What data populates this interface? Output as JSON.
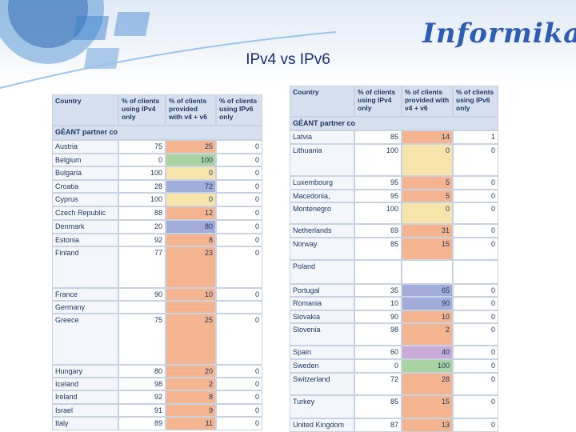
{
  "title": "IPv4 vs IPv6",
  "logo": "Informika",
  "tables": [
    {
      "columns": [
        "Country",
        "% of clients using IPv4 only",
        "% of clients provided with v4 + v6",
        "% of clients using IPv6 only"
      ],
      "section": "GÉANT partner co",
      "rows": [
        {
          "country": "Austria",
          "ipv4": 75,
          "both": 25,
          "ipv6": 0,
          "color": "#f4b48f"
        },
        {
          "country": "Belgium",
          "ipv4": 0,
          "both": 100,
          "ipv6": 0,
          "color": "#a9d3a0"
        },
        {
          "country": "Bulgaria",
          "ipv4": 100,
          "both": 0,
          "ipv6": 0,
          "color": "#f6e4aa"
        },
        {
          "country": "Croatia",
          "ipv4": 28,
          "both": 72,
          "ipv6": 0,
          "color": "#a2acd8"
        },
        {
          "country": "Cyprus",
          "ipv4": 100,
          "both": 0,
          "ipv6": 0,
          "color": "#f6e4aa"
        },
        {
          "country": "Czech Republic",
          "ipv4": 88,
          "both": 12,
          "ipv6": 0,
          "color": "#f4b48f"
        },
        {
          "country": "Denmark",
          "ipv4": 20,
          "both": 80,
          "ipv6": 0,
          "color": "#a2acd8"
        },
        {
          "country": "Estonia",
          "ipv4": 92,
          "both": 8,
          "ipv6": 0,
          "color": "#f4b48f"
        },
        {
          "country": "Finland",
          "ipv4": 77,
          "both": 23,
          "ipv6": 0,
          "color": "#f4b48f"
        },
        {
          "country": "France",
          "ipv4": 90,
          "both": 10,
          "ipv6": 0,
          "color": "#f4b48f"
        },
        {
          "country": "Germany",
          "ipv4": null,
          "both": null,
          "ipv6": null,
          "color": "#f4b48f"
        },
        {
          "country": "Greece",
          "ipv4": 75,
          "both": 25,
          "ipv6": 0,
          "color": "#f4b48f"
        },
        {
          "country": "Hungary",
          "ipv4": 80,
          "both": 20,
          "ipv6": 0,
          "color": "#f4b48f"
        },
        {
          "country": "Iceland",
          "ipv4": 98,
          "both": 2,
          "ipv6": 0,
          "color": "#f4b48f"
        },
        {
          "country": "Ireland",
          "ipv4": 92,
          "both": 8,
          "ipv6": 0,
          "color": "#f4b48f"
        },
        {
          "country": "Israel",
          "ipv4": 91,
          "both": 9,
          "ipv6": 0,
          "color": "#f4b48f"
        },
        {
          "country": "Italy",
          "ipv4": 89,
          "both": 11,
          "ipv6": 0,
          "color": "#f4b48f"
        }
      ]
    },
    {
      "columns": [
        "Country",
        "% of clients using IPv4 only",
        "% of clients provided with v4 + v6",
        "% of clients using IPv6 only"
      ],
      "section": "GÉANT partner co",
      "rows": [
        {
          "country": "Latvia",
          "ipv4": 85,
          "both": 14,
          "ipv6": 1,
          "color": "#f4b48f"
        },
        {
          "country": "Lithuania",
          "ipv4": 100,
          "both": 0,
          "ipv6": 0,
          "color": "#f6e4aa"
        },
        {
          "country": "Luxembourg",
          "ipv4": 95,
          "both": 5,
          "ipv6": 0,
          "color": "#f4b48f"
        },
        {
          "country": "Macedonia, FYRO",
          "ipv4": 95,
          "both": 5,
          "ipv6": 0,
          "color": "#f4b48f"
        },
        {
          "country": "Montenegro",
          "ipv4": 100,
          "both": 0,
          "ipv6": 0,
          "color": "#f6e4aa"
        },
        {
          "country": "Netherlands",
          "ipv4": 69,
          "both": 31,
          "ipv6": 0,
          "color": "#f4b48f"
        },
        {
          "country": "Norway",
          "ipv4": 85,
          "both": 15,
          "ipv6": 0,
          "color": "#f4b48f"
        },
        {
          "country": "Poland",
          "ipv4": null,
          "both": null,
          "ipv6": null,
          "color": null
        },
        {
          "country": "Portugal",
          "ipv4": 35,
          "both": 65,
          "ipv6": 0,
          "color": "#a2acd8"
        },
        {
          "country": "Romania",
          "ipv4": 10,
          "both": 90,
          "ipv6": 0,
          "color": "#a2acd8"
        },
        {
          "country": "Slovakia",
          "ipv4": 90,
          "both": 10,
          "ipv6": 0,
          "color": "#f4b48f"
        },
        {
          "country": "Slovenia",
          "ipv4": 98,
          "both": 2,
          "ipv6": 0,
          "color": "#f4b48f"
        },
        {
          "country": "Spain",
          "ipv4": 60,
          "both": 40,
          "ipv6": 0,
          "color": "#c8abd9"
        },
        {
          "country": "Sweden",
          "ipv4": 0,
          "both": 100,
          "ipv6": 0,
          "color": "#a9d3a0"
        },
        {
          "country": "Switzerland",
          "ipv4": 72,
          "both": 28,
          "ipv6": 0,
          "color": "#f4b48f"
        },
        {
          "country": "Turkey",
          "ipv4": 85,
          "both": 15,
          "ipv6": 0,
          "color": "#f4b48f"
        },
        {
          "country": "United Kingdom",
          "ipv4": 87,
          "both": 13,
          "ipv6": 0,
          "color": "#f4b48f"
        }
      ]
    }
  ]
}
